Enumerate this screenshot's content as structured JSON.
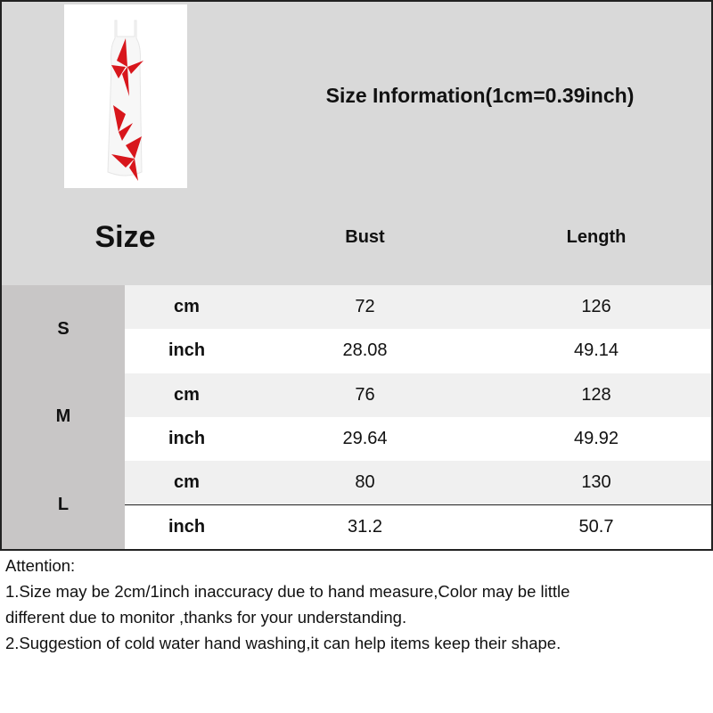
{
  "header": {
    "title": "Size Information(1cm=0.39inch)",
    "size_label": "Size",
    "columns": [
      "Bust",
      "Length"
    ]
  },
  "product_image": {
    "description_icon": "dress-image",
    "colors": {
      "dress": "#ffffff",
      "flower": "#d8161c"
    }
  },
  "sizes": [
    {
      "size": "S",
      "rows": [
        {
          "unit": "cm",
          "bust": "72",
          "length": "126"
        },
        {
          "unit": "inch",
          "bust": "28.08",
          "length": "49.14"
        }
      ]
    },
    {
      "size": "M",
      "rows": [
        {
          "unit": "cm",
          "bust": "76",
          "length": "128"
        },
        {
          "unit": "inch",
          "bust": "29.64",
          "length": "49.92"
        }
      ]
    },
    {
      "size": "L",
      "rows": [
        {
          "unit": "cm",
          "bust": "80",
          "length": "130"
        },
        {
          "unit": "inch",
          "bust": "31.2",
          "length": "50.7"
        }
      ]
    }
  ],
  "notes": [
    "Attention:",
    "1.Size may be 2cm/1inch inaccuracy due to hand measure,Color may be little",
    "different due to monitor ,thanks for your understanding.",
    "2.Suggestion of cold water hand washing,it can help items keep their shape."
  ]
}
